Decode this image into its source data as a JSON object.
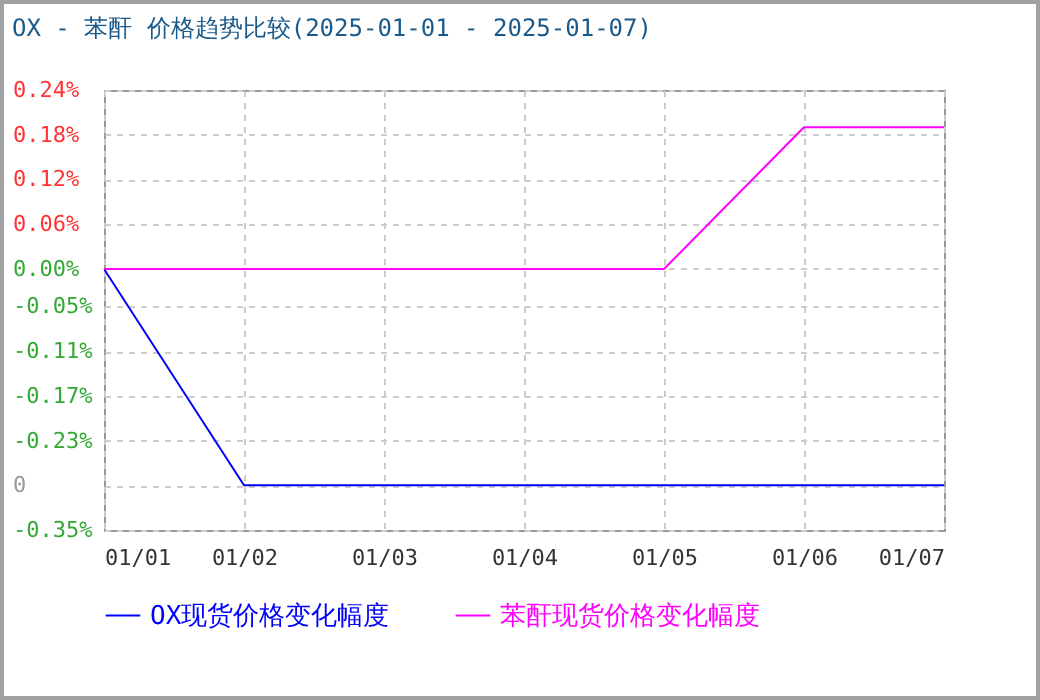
{
  "chart_data": {
    "type": "line",
    "title": "OX - 苯酐 价格趋势比较(2025-01-01 - 2025-01-07)",
    "categories": [
      "01/01",
      "01/02",
      "01/03",
      "01/04",
      "01/05",
      "01/06",
      "01/07"
    ],
    "series": [
      {
        "name": "OX现货价格变化幅度",
        "color": "#0000ff",
        "values": [
          0,
          -0.29,
          -0.29,
          -0.29,
          -0.29,
          -0.29,
          -0.29
        ]
      },
      {
        "name": "苯酐现货价格变化幅度",
        "color": "#ff00ff",
        "values": [
          0,
          0,
          0,
          0,
          0,
          0.19,
          0.19
        ]
      }
    ],
    "ylim": [
      -0.35,
      0.24
    ],
    "yticks": [
      {
        "value": 0.24,
        "label": "0.24%"
      },
      {
        "value": 0.18,
        "label": "0.18%"
      },
      {
        "value": 0.12,
        "label": "0.12%"
      },
      {
        "value": 0.06,
        "label": "0.06%"
      },
      {
        "value": 0,
        "label": "0.00%"
      },
      {
        "value": -0.05,
        "label": "-0.05%"
      },
      {
        "value": -0.11,
        "label": "-0.11%"
      },
      {
        "value": -0.17,
        "label": "-0.17%"
      },
      {
        "value": -0.23,
        "label": "-0.23%"
      },
      {
        "value": -0.29,
        "label": "0"
      },
      {
        "value": -0.35,
        "label": "-0.35%"
      }
    ],
    "grid": true,
    "legend": "bottom",
    "marker": "none",
    "line_style": "solid"
  }
}
